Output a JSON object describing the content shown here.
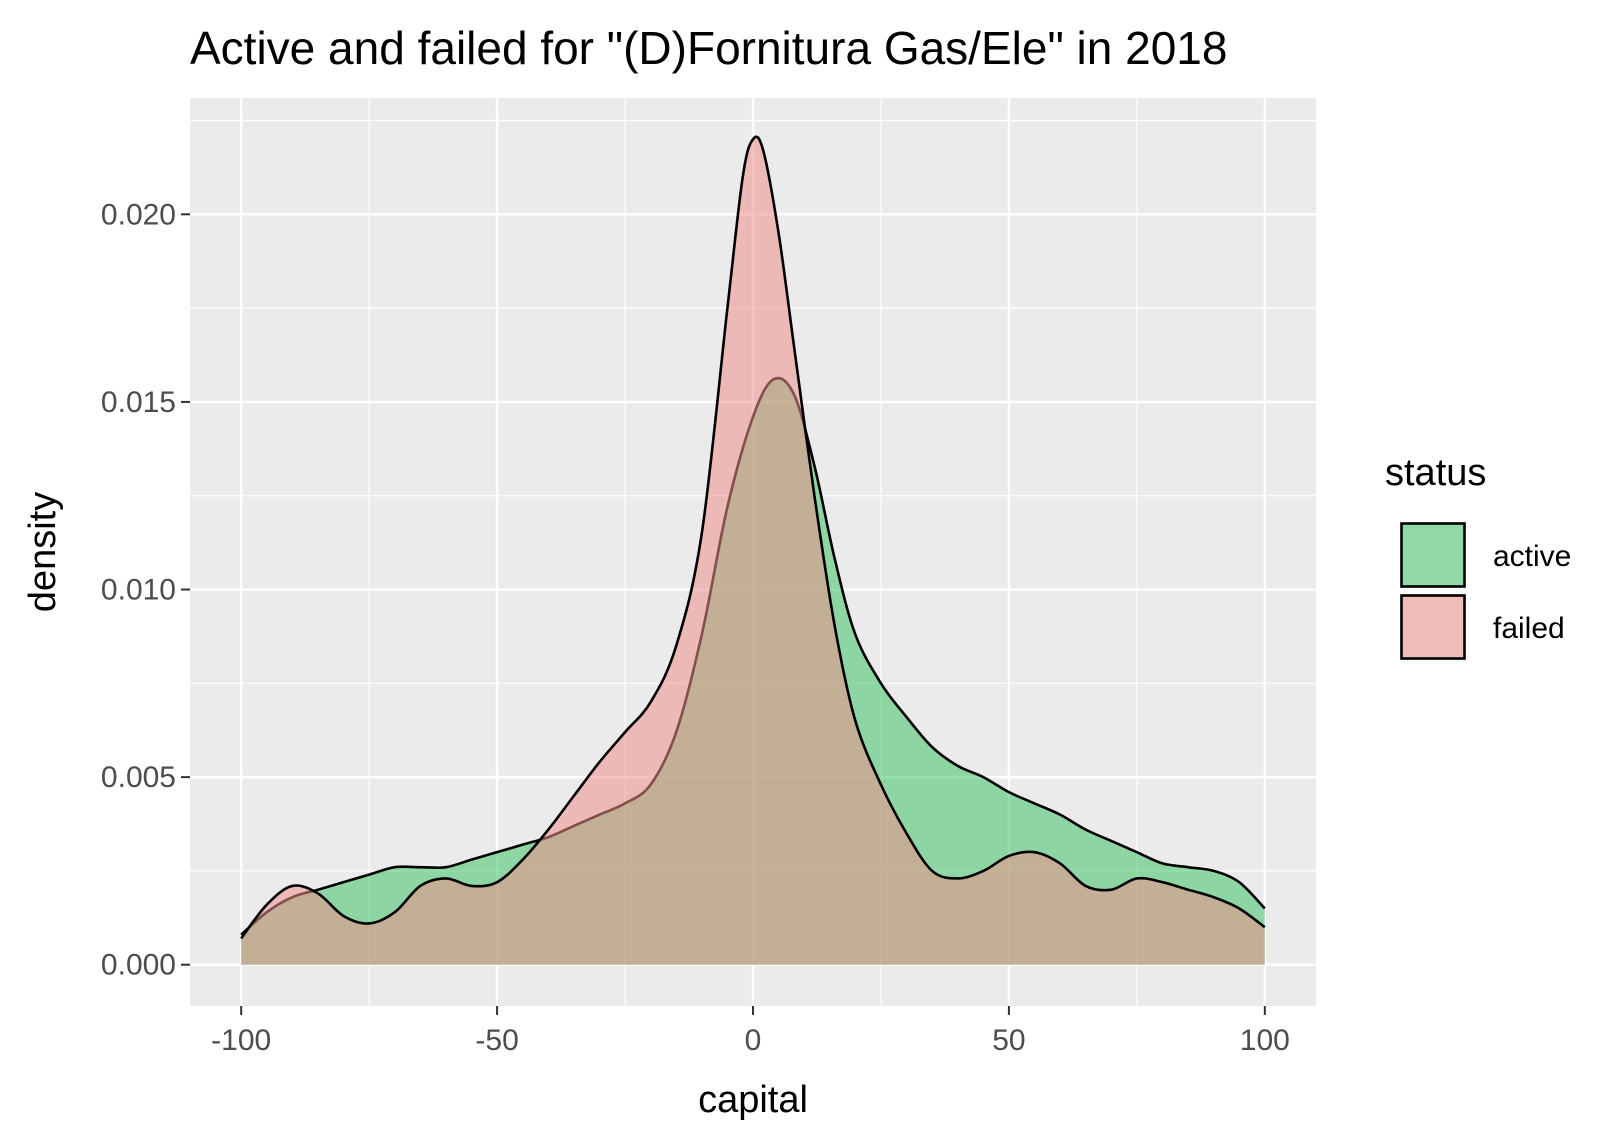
{
  "chart_data": {
    "type": "area",
    "title": "Active and failed for \"(D)Fornitura Gas/Ele\" in 2018",
    "xlabel": "capital",
    "ylabel": "density",
    "xlim": [
      -110,
      110
    ],
    "ylim": [
      -0.0011,
      0.0231
    ],
    "x_ticks": [
      -100,
      -50,
      0,
      50,
      100
    ],
    "x_tick_labels": [
      "-100",
      "-50",
      "0",
      "50",
      "100"
    ],
    "y_ticks": [
      0,
      0.005,
      0.01,
      0.015,
      0.02
    ],
    "y_tick_labels": [
      "0.000",
      "0.005",
      "0.010",
      "0.015",
      "0.020"
    ],
    "grid": true,
    "legend": {
      "title": "status",
      "placement": "right"
    },
    "series": [
      {
        "name": "active",
        "fill": "#3fc469",
        "fill_opacity": 0.55,
        "points": [
          [
            -100,
            0.0008
          ],
          [
            -95,
            0.0014
          ],
          [
            -90,
            0.0018
          ],
          [
            -85,
            0.002
          ],
          [
            -80,
            0.0022
          ],
          [
            -75,
            0.0024
          ],
          [
            -70,
            0.0026
          ],
          [
            -65,
            0.0026
          ],
          [
            -60,
            0.0026
          ],
          [
            -55,
            0.0028
          ],
          [
            -50,
            0.003
          ],
          [
            -45,
            0.0032
          ],
          [
            -40,
            0.0034
          ],
          [
            -35,
            0.0037
          ],
          [
            -30,
            0.004
          ],
          [
            -25,
            0.0043
          ],
          [
            -20,
            0.0048
          ],
          [
            -15,
            0.0062
          ],
          [
            -10,
            0.0088
          ],
          [
            -5,
            0.0122
          ],
          [
            0,
            0.0146
          ],
          [
            4,
            0.0156
          ],
          [
            8,
            0.0152
          ],
          [
            12,
            0.0133
          ],
          [
            16,
            0.0108
          ],
          [
            20,
            0.0088
          ],
          [
            25,
            0.0075
          ],
          [
            30,
            0.0066
          ],
          [
            35,
            0.0058
          ],
          [
            40,
            0.0053
          ],
          [
            45,
            0.005
          ],
          [
            50,
            0.0046
          ],
          [
            55,
            0.0043
          ],
          [
            60,
            0.004
          ],
          [
            65,
            0.0036
          ],
          [
            70,
            0.0033
          ],
          [
            75,
            0.003
          ],
          [
            80,
            0.0027
          ],
          [
            85,
            0.0026
          ],
          [
            90,
            0.0025
          ],
          [
            95,
            0.0022
          ],
          [
            100,
            0.0015
          ]
        ]
      },
      {
        "name": "failed",
        "fill": "#ef8f8a",
        "fill_opacity": 0.55,
        "points": [
          [
            -100,
            0.0007
          ],
          [
            -95,
            0.0016
          ],
          [
            -90,
            0.0021
          ],
          [
            -85,
            0.0019
          ],
          [
            -80,
            0.0013
          ],
          [
            -75,
            0.0011
          ],
          [
            -70,
            0.0014
          ],
          [
            -65,
            0.0021
          ],
          [
            -60,
            0.0023
          ],
          [
            -55,
            0.0021
          ],
          [
            -50,
            0.0022
          ],
          [
            -45,
            0.0028
          ],
          [
            -40,
            0.0036
          ],
          [
            -35,
            0.0045
          ],
          [
            -30,
            0.0054
          ],
          [
            -25,
            0.0062
          ],
          [
            -20,
            0.007
          ],
          [
            -15,
            0.0085
          ],
          [
            -10,
            0.0115
          ],
          [
            -5,
            0.0175
          ],
          [
            -2,
            0.021
          ],
          [
            0,
            0.022
          ],
          [
            2,
            0.0217
          ],
          [
            5,
            0.0195
          ],
          [
            8,
            0.0165
          ],
          [
            12,
            0.0125
          ],
          [
            16,
            0.009
          ],
          [
            20,
            0.0065
          ],
          [
            25,
            0.0048
          ],
          [
            30,
            0.0035
          ],
          [
            35,
            0.0025
          ],
          [
            40,
            0.0023
          ],
          [
            45,
            0.0025
          ],
          [
            50,
            0.0029
          ],
          [
            55,
            0.003
          ],
          [
            60,
            0.0027
          ],
          [
            65,
            0.0021
          ],
          [
            70,
            0.002
          ],
          [
            75,
            0.0023
          ],
          [
            80,
            0.0022
          ],
          [
            85,
            0.002
          ],
          [
            90,
            0.0018
          ],
          [
            95,
            0.0015
          ],
          [
            100,
            0.001
          ]
        ]
      }
    ]
  }
}
